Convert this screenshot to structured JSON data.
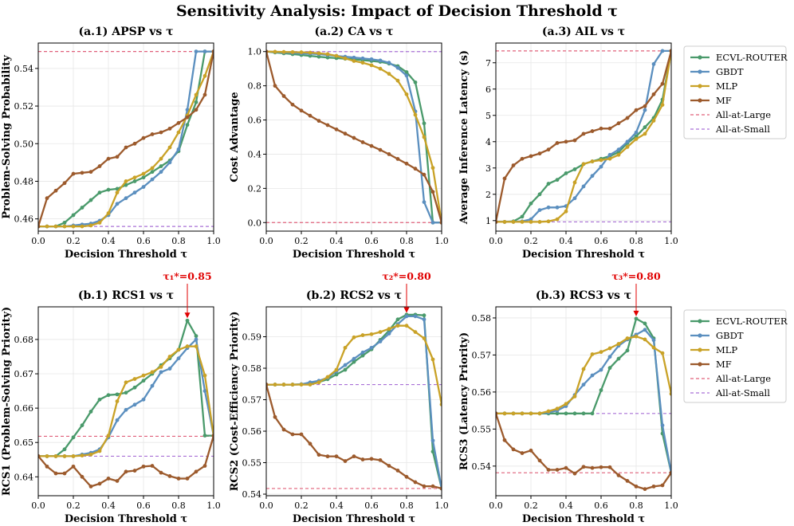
{
  "figure_title": "Sensitivity Analysis: Impact of Decision Threshold τ",
  "legend_labels": [
    "ECVL-ROUTER",
    "GBDT",
    "MLP",
    "MF",
    "All-at-Large",
    "All-at-Small"
  ],
  "colors": {
    "ECVL-ROUTER": "#4a9a6b",
    "GBDT": "#5b8fbf",
    "MLP": "#c9a227",
    "MF": "#9c5a2c",
    "All-at-Large": "#e0607a",
    "All-at-Small": "#a970d6",
    "annotation": "#e00000"
  },
  "chart_data": [
    {
      "id": "a1",
      "type": "line",
      "title": "(a.1) APSP vs τ",
      "xlabel": "Decision Threshold τ",
      "ylabel": "Problem-Solving Probability",
      "xlim": [
        0,
        1
      ],
      "ylim": [
        0.4535,
        0.5535
      ],
      "xticks": [
        "0.0",
        "0.2",
        "0.4",
        "0.6",
        "0.8",
        "1.0"
      ],
      "xtick_values": [
        0,
        0.2,
        0.4,
        0.6,
        0.8,
        1.0
      ],
      "yticks": [
        "0.46",
        "0.48",
        "0.50",
        "0.52",
        "0.54"
      ],
      "ytick_values": [
        0.46,
        0.48,
        0.5,
        0.52,
        0.54
      ],
      "x": [
        0,
        0.05,
        0.1,
        0.15,
        0.2,
        0.25,
        0.3,
        0.35,
        0.4,
        0.45,
        0.5,
        0.55,
        0.6,
        0.65,
        0.7,
        0.75,
        0.8,
        0.85,
        0.9,
        0.95,
        1.0
      ],
      "series": [
        {
          "name": "ECVL-ROUTER",
          "values": [
            0.456,
            0.456,
            0.456,
            0.458,
            0.462,
            0.466,
            0.47,
            0.474,
            0.4755,
            0.476,
            0.478,
            0.48,
            0.482,
            0.485,
            0.488,
            0.491,
            0.496,
            0.51,
            0.522,
            0.549,
            0.549
          ]
        },
        {
          "name": "GBDT",
          "values": [
            0.456,
            0.456,
            0.456,
            0.456,
            0.4565,
            0.457,
            0.4575,
            0.459,
            0.462,
            0.468,
            0.471,
            0.474,
            0.477,
            0.481,
            0.485,
            0.49,
            0.497,
            0.518,
            0.549,
            0.549,
            0.549
          ]
        },
        {
          "name": "MLP",
          "values": [
            0.456,
            0.456,
            0.456,
            0.456,
            0.456,
            0.456,
            0.4565,
            0.458,
            0.463,
            0.474,
            0.48,
            0.482,
            0.484,
            0.487,
            0.492,
            0.498,
            0.506,
            0.515,
            0.526,
            0.536,
            0.549
          ]
        },
        {
          "name": "MF",
          "values": [
            0.456,
            0.471,
            0.475,
            0.479,
            0.484,
            0.4845,
            0.485,
            0.488,
            0.492,
            0.493,
            0.498,
            0.5,
            0.503,
            0.505,
            0.506,
            0.508,
            0.511,
            0.514,
            0.518,
            0.526,
            0.549
          ]
        }
      ],
      "ref_lines": [
        {
          "name": "All-at-Large",
          "value": 0.549
        },
        {
          "name": "All-at-Small",
          "value": 0.456
        }
      ],
      "legend": "right"
    },
    {
      "id": "a2",
      "type": "line",
      "title": "(a.2) CA vs τ",
      "xlabel": "Decision Threshold τ",
      "ylabel": "Cost Advantage",
      "xlim": [
        0,
        1
      ],
      "ylim": [
        -0.05,
        1.05
      ],
      "xticks": [
        "0.0",
        "0.2",
        "0.4",
        "0.6",
        "0.8",
        "1.0"
      ],
      "xtick_values": [
        0,
        0.2,
        0.4,
        0.6,
        0.8,
        1.0
      ],
      "yticks": [
        "0.0",
        "0.2",
        "0.4",
        "0.6",
        "0.8",
        "1.0"
      ],
      "ytick_values": [
        0,
        0.2,
        0.4,
        0.6,
        0.8,
        1.0
      ],
      "x": [
        0,
        0.05,
        0.1,
        0.15,
        0.2,
        0.25,
        0.3,
        0.35,
        0.4,
        0.45,
        0.5,
        0.55,
        0.6,
        0.65,
        0.7,
        0.75,
        0.8,
        0.85,
        0.9,
        0.95,
        1.0
      ],
      "series": [
        {
          "name": "ECVL-ROUTER",
          "values": [
            1.0,
            0.995,
            0.99,
            0.985,
            0.98,
            0.975,
            0.97,
            0.965,
            0.962,
            0.958,
            0.955,
            0.95,
            0.945,
            0.94,
            0.93,
            0.915,
            0.88,
            0.82,
            0.58,
            0.0,
            0.0
          ]
        },
        {
          "name": "GBDT",
          "values": [
            1.0,
            0.998,
            0.995,
            0.993,
            0.99,
            0.988,
            0.985,
            0.98,
            0.975,
            0.97,
            0.965,
            0.96,
            0.955,
            0.948,
            0.935,
            0.905,
            0.86,
            0.65,
            0.12,
            0.0,
            0.0
          ]
        },
        {
          "name": "MLP",
          "values": [
            1.0,
            0.999,
            0.998,
            0.997,
            0.996,
            0.994,
            0.99,
            0.985,
            0.975,
            0.96,
            0.945,
            0.935,
            0.92,
            0.9,
            0.87,
            0.83,
            0.75,
            0.63,
            0.5,
            0.32,
            0.0
          ]
        },
        {
          "name": "MF",
          "values": [
            1.0,
            0.8,
            0.74,
            0.69,
            0.655,
            0.625,
            0.595,
            0.57,
            0.545,
            0.52,
            0.495,
            0.47,
            0.448,
            0.425,
            0.4,
            0.372,
            0.345,
            0.315,
            0.28,
            0.18,
            0.0
          ]
        }
      ],
      "ref_lines": [
        {
          "name": "All-at-Large",
          "value": 0.0
        },
        {
          "name": "All-at-Small",
          "value": 1.0
        }
      ]
    },
    {
      "id": "a3",
      "type": "line",
      "title": "(a.3) AIL vs τ",
      "xlabel": "Decision Threshold τ",
      "ylabel": "Average Inference Latency (s)",
      "xlim": [
        0,
        1
      ],
      "ylim": [
        0.6,
        7.75
      ],
      "xticks": [
        "0.0",
        "0.2",
        "0.4",
        "0.6",
        "0.8",
        "1.0"
      ],
      "xtick_values": [
        0,
        0.2,
        0.4,
        0.6,
        0.8,
        1.0
      ],
      "yticks": [
        "1",
        "2",
        "3",
        "4",
        "5",
        "6",
        "7"
      ],
      "ytick_values": [
        1,
        2,
        3,
        4,
        5,
        6,
        7
      ],
      "x": [
        0,
        0.05,
        0.1,
        0.15,
        0.2,
        0.25,
        0.3,
        0.35,
        0.4,
        0.45,
        0.5,
        0.55,
        0.6,
        0.65,
        0.7,
        0.75,
        0.8,
        0.85,
        0.9,
        0.95,
        1.0
      ],
      "series": [
        {
          "name": "ECVL-ROUTER",
          "values": [
            0.95,
            0.95,
            0.97,
            1.15,
            1.65,
            2.0,
            2.4,
            2.55,
            2.8,
            2.95,
            3.15,
            3.25,
            3.35,
            3.45,
            3.6,
            3.95,
            4.2,
            4.55,
            4.9,
            5.6,
            7.45
          ]
        },
        {
          "name": "GBDT",
          "values": [
            0.95,
            0.95,
            0.95,
            0.97,
            1.05,
            1.4,
            1.5,
            1.5,
            1.55,
            1.85,
            2.3,
            2.7,
            3.05,
            3.5,
            3.7,
            4.0,
            4.35,
            5.2,
            6.95,
            7.45,
            7.45
          ]
        },
        {
          "name": "MLP",
          "values": [
            0.95,
            0.95,
            0.95,
            0.95,
            0.95,
            0.95,
            0.97,
            1.05,
            1.35,
            2.45,
            3.15,
            3.25,
            3.3,
            3.35,
            3.5,
            3.8,
            4.1,
            4.3,
            4.8,
            5.4,
            7.45
          ]
        },
        {
          "name": "MF",
          "values": [
            0.95,
            2.6,
            3.1,
            3.35,
            3.45,
            3.55,
            3.7,
            3.95,
            4.0,
            4.05,
            4.3,
            4.4,
            4.5,
            4.5,
            4.7,
            4.9,
            5.2,
            5.35,
            5.8,
            6.2,
            7.45
          ]
        }
      ],
      "ref_lines": [
        {
          "name": "All-at-Large",
          "value": 7.45
        },
        {
          "name": "All-at-Small",
          "value": 0.95
        }
      ]
    },
    {
      "id": "b1",
      "type": "line",
      "title": "(b.1) RCS1 vs τ",
      "xlabel": "Decision Threshold τ",
      "ylabel": "RCS1 (Problem-Solving Priority)",
      "xlim": [
        0,
        1
      ],
      "ylim": [
        0.6345,
        0.6895
      ],
      "xticks": [
        "0.0",
        "0.2",
        "0.4",
        "0.6",
        "0.8",
        "1.0"
      ],
      "xtick_values": [
        0,
        0.2,
        0.4,
        0.6,
        0.8,
        1.0
      ],
      "yticks": [
        "0.64",
        "0.65",
        "0.66",
        "0.67",
        "0.68"
      ],
      "ytick_values": [
        0.64,
        0.65,
        0.66,
        0.67,
        0.68
      ],
      "x": [
        0,
        0.05,
        0.1,
        0.15,
        0.2,
        0.25,
        0.3,
        0.35,
        0.4,
        0.45,
        0.5,
        0.55,
        0.6,
        0.65,
        0.7,
        0.75,
        0.8,
        0.85,
        0.9,
        0.95,
        1.0
      ],
      "series": [
        {
          "name": "ECVL-ROUTER",
          "values": [
            0.646,
            0.646,
            0.646,
            0.648,
            0.6515,
            0.655,
            0.659,
            0.6625,
            0.6638,
            0.664,
            0.6645,
            0.666,
            0.668,
            0.67,
            0.6725,
            0.6745,
            0.677,
            0.6855,
            0.681,
            0.652,
            0.652
          ]
        },
        {
          "name": "GBDT",
          "values": [
            0.646,
            0.646,
            0.646,
            0.646,
            0.646,
            0.6465,
            0.647,
            0.648,
            0.6515,
            0.6565,
            0.6595,
            0.661,
            0.6625,
            0.6665,
            0.6705,
            0.6715,
            0.6745,
            0.6775,
            0.68,
            0.665,
            0.652
          ]
        },
        {
          "name": "MLP",
          "values": [
            0.646,
            0.646,
            0.646,
            0.646,
            0.646,
            0.6462,
            0.6465,
            0.6475,
            0.652,
            0.662,
            0.6675,
            0.6685,
            0.6695,
            0.6705,
            0.672,
            0.675,
            0.677,
            0.678,
            0.678,
            0.6695,
            0.652
          ]
        },
        {
          "name": "MF",
          "values": [
            0.646,
            0.643,
            0.641,
            0.641,
            0.643,
            0.64,
            0.6372,
            0.638,
            0.6395,
            0.6388,
            0.6415,
            0.6418,
            0.643,
            0.6432,
            0.6412,
            0.6402,
            0.6395,
            0.6395,
            0.6415,
            0.6432,
            0.652
          ]
        }
      ],
      "ref_lines": [
        {
          "name": "All-at-Large",
          "value": 0.6518
        },
        {
          "name": "All-at-Small",
          "value": 0.646
        }
      ],
      "annotation": {
        "text": "τ₁*=0.85",
        "x": 0.85,
        "y": 0.6855
      },
      "legend": "right"
    },
    {
      "id": "b2",
      "type": "line",
      "title": "(b.2) RCS2 vs τ",
      "xlabel": "Decision Threshold τ",
      "ylabel": "RCS2 (Cost-Efficiency Priority)",
      "xlim": [
        0,
        1
      ],
      "ylim": [
        0.5395,
        0.5995
      ],
      "xticks": [
        "0.0",
        "0.2",
        "0.4",
        "0.6",
        "0.8",
        "1.0"
      ],
      "xtick_values": [
        0,
        0.2,
        0.4,
        0.6,
        0.8,
        1.0
      ],
      "yticks": [
        "0.54",
        "0.55",
        "0.56",
        "0.57",
        "0.58",
        "0.59"
      ],
      "ytick_values": [
        0.54,
        0.55,
        0.56,
        0.57,
        0.58,
        0.59
      ],
      "x": [
        0,
        0.05,
        0.1,
        0.15,
        0.2,
        0.25,
        0.3,
        0.35,
        0.4,
        0.45,
        0.5,
        0.55,
        0.6,
        0.65,
        0.7,
        0.75,
        0.8,
        0.85,
        0.9,
        0.95,
        1.0
      ],
      "series": [
        {
          "name": "ECVL-ROUTER",
          "values": [
            0.5748,
            0.5748,
            0.5748,
            0.5748,
            0.5749,
            0.5752,
            0.5756,
            0.5765,
            0.578,
            0.5795,
            0.582,
            0.584,
            0.586,
            0.589,
            0.592,
            0.5955,
            0.597,
            0.597,
            0.5968,
            0.5535,
            0.5418
          ]
        },
        {
          "name": "GBDT",
          "values": [
            0.5748,
            0.5748,
            0.5748,
            0.5748,
            0.5749,
            0.5755,
            0.576,
            0.577,
            0.579,
            0.581,
            0.583,
            0.585,
            0.5865,
            0.5885,
            0.591,
            0.594,
            0.5965,
            0.5965,
            0.5955,
            0.557,
            0.5418
          ]
        },
        {
          "name": "MLP",
          "values": [
            0.5748,
            0.5748,
            0.5748,
            0.5748,
            0.5748,
            0.5748,
            0.5755,
            0.5772,
            0.5795,
            0.5865,
            0.5898,
            0.5905,
            0.5908,
            0.5915,
            0.5925,
            0.5935,
            0.5935,
            0.5915,
            0.5895,
            0.5828,
            0.5685
          ]
        },
        {
          "name": "MF",
          "values": [
            0.5748,
            0.5645,
            0.5605,
            0.559,
            0.559,
            0.556,
            0.5525,
            0.552,
            0.552,
            0.5505,
            0.552,
            0.551,
            0.5512,
            0.5508,
            0.549,
            0.5475,
            0.5455,
            0.5438,
            0.5425,
            0.5425,
            0.5418
          ]
        }
      ],
      "ref_lines": [
        {
          "name": "All-at-Large",
          "value": 0.5418
        },
        {
          "name": "All-at-Small",
          "value": 0.5748
        }
      ],
      "annotation": {
        "text": "τ₂*=0.80",
        "x": 0.8,
        "y": 0.5968
      }
    },
    {
      "id": "b3",
      "type": "line",
      "title": "(b.3) RCS3 vs τ",
      "xlabel": "Decision Threshold τ",
      "ylabel": "RCS3 (Latency Priority)",
      "xlim": [
        0,
        1
      ],
      "ylim": [
        0.532,
        0.583
      ],
      "xticks": [
        "0.0",
        "0.2",
        "0.4",
        "0.6",
        "0.8",
        "1.0"
      ],
      "xtick_values": [
        0,
        0.2,
        0.4,
        0.6,
        0.8,
        1.0
      ],
      "yticks": [
        "0.54",
        "0.55",
        "0.56",
        "0.57",
        "0.58"
      ],
      "ytick_values": [
        0.54,
        0.55,
        0.56,
        0.57,
        0.58
      ],
      "x": [
        0,
        0.05,
        0.1,
        0.15,
        0.2,
        0.25,
        0.3,
        0.35,
        0.4,
        0.45,
        0.5,
        0.55,
        0.6,
        0.65,
        0.7,
        0.75,
        0.8,
        0.85,
        0.9,
        0.95,
        1.0
      ],
      "series": [
        {
          "name": "ECVL-ROUTER",
          "values": [
            0.5542,
            0.5542,
            0.5542,
            0.5542,
            0.5542,
            0.5542,
            0.5542,
            0.5542,
            0.5542,
            0.5542,
            0.5542,
            0.5542,
            0.5605,
            0.5665,
            0.569,
            0.5712,
            0.5798,
            0.5785,
            0.5745,
            0.5488,
            0.5382
          ]
        },
        {
          "name": "GBDT",
          "values": [
            0.5542,
            0.5542,
            0.5542,
            0.5542,
            0.5542,
            0.5542,
            0.5545,
            0.555,
            0.5562,
            0.5592,
            0.562,
            0.5645,
            0.566,
            0.5695,
            0.5725,
            0.5742,
            0.5755,
            0.5768,
            0.574,
            0.551,
            0.5382
          ]
        },
        {
          "name": "MLP",
          "values": [
            0.5542,
            0.5542,
            0.5542,
            0.5542,
            0.5542,
            0.5542,
            0.5548,
            0.5555,
            0.5568,
            0.5588,
            0.5662,
            0.5702,
            0.5708,
            0.5718,
            0.573,
            0.5745,
            0.575,
            0.5742,
            0.572,
            0.5705,
            0.5595
          ]
        },
        {
          "name": "MF",
          "values": [
            0.5542,
            0.547,
            0.5445,
            0.5435,
            0.5442,
            0.5415,
            0.539,
            0.539,
            0.5395,
            0.538,
            0.5398,
            0.5395,
            0.5397,
            0.5397,
            0.5375,
            0.536,
            0.5345,
            0.5338,
            0.5345,
            0.5348,
            0.5382
          ]
        }
      ],
      "ref_lines": [
        {
          "name": "All-at-Large",
          "value": 0.5382
        },
        {
          "name": "All-at-Small",
          "value": 0.5542
        }
      ],
      "annotation": {
        "text": "τ₃*=0.80",
        "x": 0.8,
        "y": 0.5798
      },
      "legend": "right"
    }
  ]
}
